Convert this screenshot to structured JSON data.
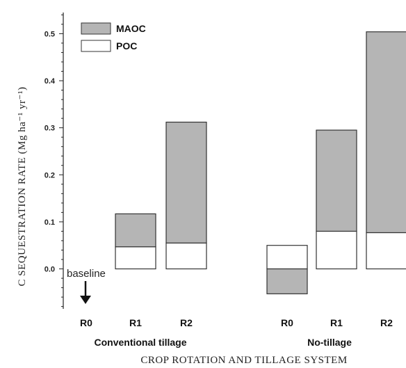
{
  "chart_data": {
    "type": "bar",
    "stacked": true,
    "categories": [
      "R0",
      "R1",
      "R2",
      "R0",
      "R1",
      "R2"
    ],
    "groups": [
      {
        "label": "Conventional tillage",
        "categories": [
          "R0",
          "R1",
          "R2"
        ]
      },
      {
        "label": "No-tillage",
        "categories": [
          "R0",
          "R1",
          "R2"
        ]
      }
    ],
    "series": [
      {
        "name": "POC",
        "color": "#ffffff",
        "values": [
          0,
          0.047,
          0.055,
          0.05,
          0.08,
          0.077
        ]
      },
      {
        "name": "MAOC",
        "color": "#b5b5b5",
        "values": [
          0,
          0.07,
          0.257,
          -0.053,
          0.215,
          0.427
        ]
      }
    ],
    "xlabel": "CROP ROTATION AND TILLAGE SYSTEM",
    "ylabel": "C SEQUESTRATION RATE (Mg ha⁻¹ yr⁻¹)",
    "ylim": [
      -0.085,
      0.545
    ],
    "yticks": [
      "0.0",
      "0.1",
      "0.2",
      "0.3",
      "0.4",
      "0.5"
    ],
    "legend": {
      "position": "top-left",
      "entries": [
        "MAOC",
        "POC"
      ]
    },
    "annotations": [
      {
        "text": "baseline",
        "category_index": 0
      }
    ],
    "grid": false
  }
}
